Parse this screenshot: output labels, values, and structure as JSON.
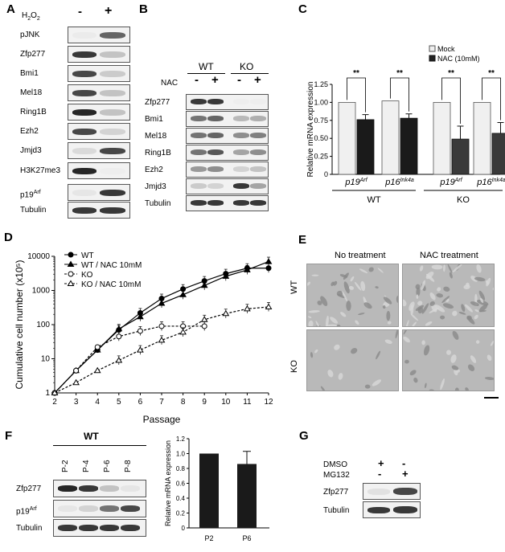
{
  "panelA": {
    "label": "A",
    "treatment": "H2O2",
    "treat_minus": "-",
    "treat_plus": "+",
    "rows": [
      {
        "name": "pJNK",
        "b1": 0.05,
        "b2": 0.75
      },
      {
        "name": "Zfp277",
        "b1": 0.9,
        "b2": 0.35
      },
      {
        "name": "Bmi1",
        "b1": 0.85,
        "b2": 0.3
      },
      {
        "name": "Mel18",
        "b1": 0.85,
        "b2": 0.35
      },
      {
        "name": "Ring1B",
        "b1": 0.95,
        "b2": 0.35
      },
      {
        "name": "Ezh2",
        "b1": 0.85,
        "b2": 0.25
      },
      {
        "name": "Jmjd3",
        "b1": 0.2,
        "b2": 0.85
      },
      {
        "name": "H3K27me3",
        "b1": 0.95,
        "b2": 0.02
      },
      {
        "name": "p19Arf",
        "b1": 0.1,
        "b2": 0.9
      },
      {
        "name": "Tubulin",
        "b1": 0.9,
        "b2": 0.9
      }
    ]
  },
  "panelB": {
    "label": "B",
    "group1": "WT",
    "group2": "KO",
    "treatment": "NAC",
    "lanes": [
      "-",
      "+",
      "-",
      "+"
    ],
    "rows": [
      {
        "name": "Zfp277",
        "b": [
          0.9,
          0.9,
          0.02,
          0.02
        ]
      },
      {
        "name": "Bmi1",
        "b": [
          0.7,
          0.75,
          0.4,
          0.45
        ]
      },
      {
        "name": "Mel18",
        "b": [
          0.7,
          0.75,
          0.6,
          0.65
        ]
      },
      {
        "name": "Ring1B",
        "b": [
          0.7,
          0.8,
          0.5,
          0.6
        ]
      },
      {
        "name": "Ezh2",
        "b": [
          0.55,
          0.6,
          0.25,
          0.35
        ]
      },
      {
        "name": "Jmjd3",
        "b": [
          0.3,
          0.25,
          0.9,
          0.5
        ]
      },
      {
        "name": "Tubulin",
        "b": [
          0.9,
          0.9,
          0.9,
          0.9
        ]
      }
    ]
  },
  "panelC": {
    "label": "C",
    "chart_data": {
      "type": "bar",
      "ylabel": "Relative mRNA expression",
      "ylim": [
        0,
        1.25
      ],
      "yticks": [
        "0",
        "0.25",
        "0.50",
        "0.75",
        "1.00",
        "1.25"
      ],
      "categories": [
        "p19Arf",
        "p16Ink4a",
        "p19Arf",
        "p16Ink4a"
      ],
      "groups": [
        "WT",
        "KO"
      ],
      "series": [
        {
          "name": "Mock",
          "values": [
            1.0,
            1.02,
            1.0,
            1.0
          ],
          "errors": [
            0,
            0,
            0,
            0
          ]
        },
        {
          "name": "NAC (10mM)",
          "values": [
            0.76,
            0.78,
            0.49,
            0.57
          ],
          "errors": [
            0.07,
            0.06,
            0.18,
            0.15
          ]
        }
      ],
      "significance": [
        "**",
        "**",
        "**",
        "**"
      ],
      "legend_position": "top-right"
    }
  },
  "panelD": {
    "label": "D",
    "chart_data": {
      "type": "line",
      "xlabel": "Passage",
      "ylabel": "Cumulative cell number (x10⁵)",
      "yscale": "log",
      "ylim": [
        1,
        10000
      ],
      "xlim": [
        2,
        12
      ],
      "yticks": [
        "1",
        "10",
        "100",
        "1000",
        "10000"
      ],
      "xticks": [
        "2",
        "3",
        "4",
        "5",
        "6",
        "7",
        "8",
        "9",
        "10",
        "11",
        "12"
      ],
      "legend_position": "top-left",
      "series": [
        {
          "name": "WT",
          "x": [
            2,
            3,
            4,
            5,
            6,
            7,
            8,
            9,
            10,
            11,
            12
          ],
          "y": [
            1,
            4.5,
            18,
            70,
            220,
            580,
            1100,
            1900,
            3100,
            4500,
            4500
          ]
        },
        {
          "name": "WT / NAC 10mM",
          "x": [
            2,
            3,
            4,
            5,
            6,
            7,
            8,
            9,
            10,
            11,
            12
          ],
          "y": [
            1,
            4.5,
            18,
            75,
            170,
            420,
            750,
            1400,
            2600,
            4000,
            7000
          ]
        },
        {
          "name": "KO",
          "x": [
            2,
            3,
            4,
            5,
            6,
            7,
            8,
            9
          ],
          "y": [
            1,
            4.5,
            22,
            45,
            65,
            90,
            90,
            90
          ]
        },
        {
          "name": "KO / NAC 10mM",
          "x": [
            2,
            3,
            4,
            5,
            6,
            7,
            8,
            9,
            10,
            11,
            12
          ],
          "y": [
            1,
            2,
            4.5,
            9,
            18,
            35,
            60,
            140,
            210,
            290,
            330
          ]
        }
      ]
    }
  },
  "panelE": {
    "label": "E",
    "col1": "No treatment",
    "col2": "NAC treatment",
    "row1": "WT",
    "row2": "KO"
  },
  "panelF": {
    "label": "F",
    "group": "WT",
    "lanes": [
      "P-2",
      "P-4",
      "P-6",
      "P-8"
    ],
    "rows": [
      {
        "name": "Zfp277",
        "b": [
          0.95,
          0.9,
          0.35,
          0.1
        ]
      },
      {
        "name": "p19Arf",
        "b": [
          0.1,
          0.25,
          0.7,
          0.85
        ]
      },
      {
        "name": "Tubulin",
        "b": [
          0.9,
          0.9,
          0.9,
          0.9
        ]
      }
    ],
    "chart_data": {
      "type": "bar",
      "ylabel": "Relative mRNA expression",
      "ylim": [
        0,
        1.2
      ],
      "yticks": [
        "0",
        "0.2",
        "0.4",
        "0.6",
        "0.8",
        "1.0",
        "1.2"
      ],
      "categories": [
        "P2",
        "P6"
      ],
      "values": [
        1.0,
        0.86
      ],
      "errors": [
        0,
        0.17
      ]
    }
  },
  "panelG": {
    "label": "G",
    "treatments": [
      {
        "name": "DMSO",
        "lanes": [
          "+",
          "-"
        ]
      },
      {
        "name": "MG132",
        "lanes": [
          "-",
          "+"
        ]
      }
    ],
    "rows": [
      {
        "name": "Zfp277",
        "b": [
          0.15,
          0.85
        ]
      },
      {
        "name": "Tubulin",
        "b": [
          0.9,
          0.9
        ]
      }
    ]
  }
}
